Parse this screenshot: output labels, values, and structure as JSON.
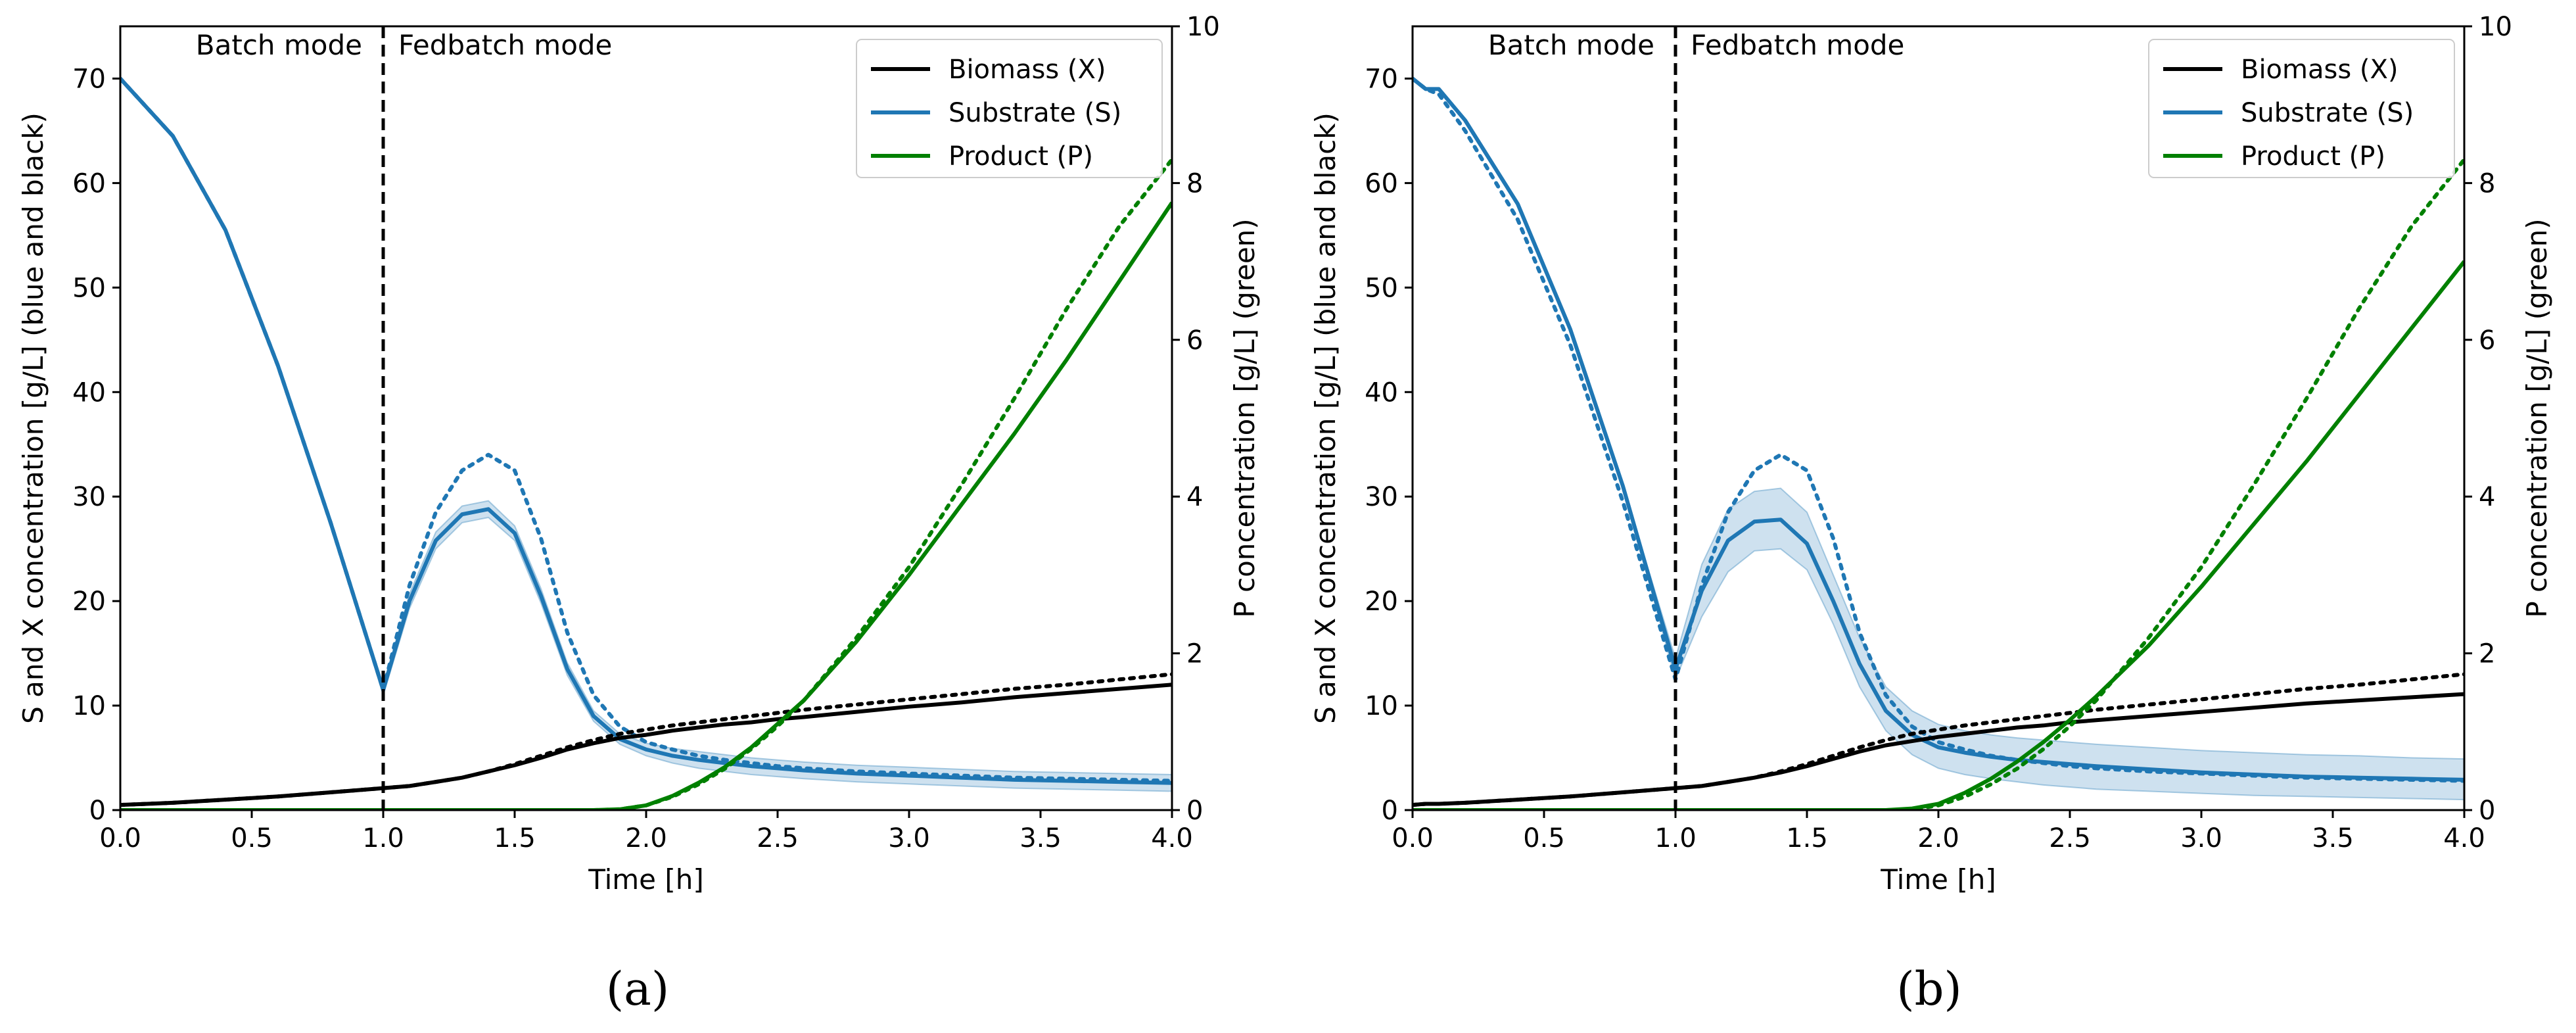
{
  "figure": {
    "subcaptions": [
      "(a)",
      "(b)"
    ]
  },
  "colors": {
    "biomass": "#000000",
    "substrate": "#1f77b4",
    "product": "#008000",
    "band": "#1f77b4"
  },
  "chart_data": [
    {
      "type": "line",
      "caption": "(a)",
      "xlabel": "Time [h]",
      "ylabel_left": "S and X concentration [g/L] (blue and black)",
      "ylabel_right": "P concentration [g/L] (green)",
      "xlim": [
        0,
        4
      ],
      "ylim_left": [
        0,
        75
      ],
      "ylim_right": [
        0,
        10
      ],
      "xticks": [
        "0.0",
        "0.5",
        "1.0",
        "1.5",
        "2.0",
        "2.5",
        "3.0",
        "3.5",
        "4.0"
      ],
      "yticks_left": [
        "0",
        "10",
        "20",
        "30",
        "40",
        "50",
        "60",
        "70"
      ],
      "yticks_right": [
        "0",
        "2",
        "4",
        "6",
        "8",
        "10"
      ],
      "annotations": {
        "switch_time": 1.0,
        "left": "Batch mode",
        "right": "Fedbatch mode"
      },
      "legend": {
        "position": "top-right",
        "entries": [
          "Biomass (X)",
          "Substrate (S)",
          "Product (P)"
        ]
      },
      "x": [
        0.0,
        0.2,
        0.4,
        0.6,
        0.8,
        1.0,
        1.1,
        1.2,
        1.3,
        1.4,
        1.5,
        1.6,
        1.7,
        1.8,
        1.9,
        2.0,
        2.1,
        2.2,
        2.3,
        2.4,
        2.5,
        2.6,
        2.8,
        3.0,
        3.2,
        3.4,
        3.6,
        3.8,
        4.0
      ],
      "series": [
        {
          "name": "Substrate (S) mean",
          "axis": "left",
          "style": "solid",
          "values": [
            70,
            64.5,
            55.5,
            42.5,
            27.5,
            11.5,
            20,
            25.8,
            28.3,
            28.8,
            26.5,
            20.5,
            13.5,
            9,
            6.8,
            5.8,
            5.2,
            4.8,
            4.5,
            4.2,
            4.0,
            3.8,
            3.5,
            3.3,
            3.1,
            2.9,
            2.8,
            2.7,
            2.6
          ],
          "band_lower": [
            70,
            64.5,
            55.5,
            42.5,
            27.5,
            11,
            19.3,
            25,
            27.5,
            28,
            25.8,
            19.8,
            12.9,
            8.5,
            6.3,
            5.2,
            4.5,
            4.0,
            3.7,
            3.4,
            3.2,
            3.0,
            2.7,
            2.5,
            2.3,
            2.1,
            2.0,
            1.9,
            1.8
          ],
          "band_upper": [
            70,
            64.5,
            55.5,
            42.5,
            27.5,
            12,
            20.7,
            26.6,
            29.1,
            29.6,
            27.2,
            21.2,
            14.1,
            9.5,
            7.3,
            6.4,
            5.9,
            5.6,
            5.3,
            5.0,
            4.8,
            4.6,
            4.3,
            4.1,
            3.9,
            3.7,
            3.6,
            3.5,
            3.4
          ]
        },
        {
          "name": "Substrate (S) reference",
          "axis": "left",
          "style": "dotted",
          "values": [
            70,
            64.5,
            55.5,
            42.5,
            27.5,
            11.5,
            21.5,
            28.5,
            32.5,
            34,
            32.5,
            26,
            17,
            11,
            8,
            6.5,
            5.8,
            5.2,
            4.8,
            4.5,
            4.2,
            4.0,
            3.7,
            3.5,
            3.3,
            3.1,
            3.0,
            2.9,
            2.8
          ]
        },
        {
          "name": "Biomass (X) mean",
          "axis": "left",
          "style": "solid",
          "values": [
            0.5,
            0.7,
            1.0,
            1.3,
            1.7,
            2.1,
            2.3,
            2.7,
            3.1,
            3.7,
            4.3,
            5.0,
            5.8,
            6.4,
            6.9,
            7.2,
            7.6,
            7.9,
            8.2,
            8.4,
            8.7,
            8.9,
            9.4,
            9.9,
            10.3,
            10.8,
            11.2,
            11.6,
            12.0
          ]
        },
        {
          "name": "Biomass (X) reference",
          "axis": "left",
          "style": "dotted",
          "values": [
            0.5,
            0.7,
            1.0,
            1.3,
            1.7,
            2.1,
            2.3,
            2.7,
            3.1,
            3.7,
            4.4,
            5.2,
            6.0,
            6.7,
            7.3,
            7.7,
            8.1,
            8.4,
            8.7,
            9.0,
            9.3,
            9.6,
            10.1,
            10.6,
            11.1,
            11.6,
            12.0,
            12.5,
            13.0
          ]
        },
        {
          "name": "Product (P) mean",
          "axis": "right",
          "style": "solid",
          "values": [
            0,
            0,
            0,
            0,
            0,
            0,
            0,
            0,
            0,
            0,
            0,
            0,
            0,
            0,
            0.01,
            0.06,
            0.18,
            0.35,
            0.55,
            0.8,
            1.1,
            1.4,
            2.15,
            3.0,
            3.9,
            4.8,
            5.75,
            6.75,
            7.75
          ]
        },
        {
          "name": "Product (P) reference",
          "axis": "right",
          "style": "dotted",
          "values": [
            0,
            0,
            0,
            0,
            0,
            0,
            0,
            0,
            0,
            0,
            0,
            0,
            0,
            0,
            0.01,
            0.06,
            0.17,
            0.33,
            0.53,
            0.78,
            1.07,
            1.4,
            2.2,
            3.1,
            4.15,
            5.25,
            6.4,
            7.45,
            8.3
          ]
        }
      ]
    },
    {
      "type": "line",
      "caption": "(b)",
      "xlabel": "Time [h]",
      "ylabel_left": "S and X concentration [g/L] (blue and black)",
      "ylabel_right": "P concentration [g/L] (green)",
      "xlim": [
        0,
        4
      ],
      "ylim_left": [
        0,
        75
      ],
      "ylim_right": [
        0,
        10
      ],
      "xticks": [
        "0.0",
        "0.5",
        "1.0",
        "1.5",
        "2.0",
        "2.5",
        "3.0",
        "3.5",
        "4.0"
      ],
      "yticks_left": [
        "0",
        "10",
        "20",
        "30",
        "40",
        "50",
        "60",
        "70"
      ],
      "yticks_right": [
        "0",
        "2",
        "4",
        "6",
        "8",
        "10"
      ],
      "annotations": {
        "switch_time": 1.0,
        "left": "Batch mode",
        "right": "Fedbatch mode"
      },
      "legend": {
        "position": "top-right",
        "entries": [
          "Biomass (X)",
          "Substrate (S)",
          "Product (P)"
        ]
      },
      "x": [
        0.0,
        0.05,
        0.1,
        0.2,
        0.4,
        0.6,
        0.8,
        1.0,
        1.1,
        1.2,
        1.3,
        1.4,
        1.5,
        1.6,
        1.7,
        1.8,
        1.9,
        2.0,
        2.1,
        2.2,
        2.3,
        2.4,
        2.5,
        2.6,
        2.8,
        3.0,
        3.2,
        3.4,
        3.6,
        3.8,
        4.0
      ],
      "series": [
        {
          "name": "Substrate (S) mean",
          "axis": "left",
          "style": "solid",
          "values": [
            70,
            69,
            69,
            66,
            58,
            46,
            31,
            13.5,
            21,
            25.8,
            27.6,
            27.8,
            25.5,
            20,
            14,
            9.5,
            7.2,
            6.0,
            5.5,
            5.1,
            4.8,
            4.6,
            4.4,
            4.2,
            3.9,
            3.6,
            3.4,
            3.2,
            3.1,
            3.0,
            2.9
          ],
          "band_lower": [
            70,
            69,
            69,
            66,
            58,
            46,
            31,
            12.5,
            18.5,
            22.8,
            24.8,
            25,
            23,
            17.8,
            11.8,
            7.6,
            5.3,
            4.0,
            3.4,
            3.0,
            2.7,
            2.4,
            2.2,
            2.0,
            1.8,
            1.6,
            1.4,
            1.3,
            1.2,
            1.1,
            1.0
          ],
          "band_upper": [
            70,
            69,
            69,
            66,
            58,
            46,
            31,
            14.5,
            23.5,
            28.8,
            30.5,
            30.8,
            28.5,
            22.5,
            16.5,
            11.8,
            9.5,
            8.2,
            7.6,
            7.2,
            6.9,
            6.7,
            6.5,
            6.3,
            6.0,
            5.7,
            5.5,
            5.3,
            5.2,
            5.0,
            4.9
          ]
        },
        {
          "name": "Substrate (S) reference",
          "axis": "left",
          "style": "dotted",
          "values": [
            70,
            69,
            68.5,
            65,
            56.5,
            44.5,
            29.5,
            12.5,
            21.5,
            28.5,
            32.5,
            34,
            32.5,
            26,
            17,
            11,
            8,
            6.5,
            5.8,
            5.2,
            4.8,
            4.5,
            4.2,
            4.0,
            3.7,
            3.5,
            3.3,
            3.1,
            3.0,
            2.9,
            2.8
          ]
        },
        {
          "name": "Biomass (X) mean",
          "axis": "left",
          "style": "solid",
          "values": [
            0.5,
            0.6,
            0.6,
            0.7,
            1.0,
            1.3,
            1.7,
            2.1,
            2.3,
            2.7,
            3.1,
            3.6,
            4.2,
            4.9,
            5.6,
            6.2,
            6.6,
            7.0,
            7.3,
            7.6,
            7.9,
            8.1,
            8.4,
            8.6,
            9.0,
            9.4,
            9.8,
            10.2,
            10.5,
            10.8,
            11.1
          ]
        },
        {
          "name": "Biomass (X) reference",
          "axis": "left",
          "style": "dotted",
          "values": [
            0.5,
            0.6,
            0.6,
            0.7,
            1.0,
            1.3,
            1.7,
            2.1,
            2.3,
            2.7,
            3.1,
            3.7,
            4.4,
            5.2,
            6.0,
            6.7,
            7.3,
            7.7,
            8.1,
            8.4,
            8.7,
            9.0,
            9.3,
            9.6,
            10.1,
            10.6,
            11.1,
            11.6,
            12.0,
            12.5,
            13.0
          ]
        },
        {
          "name": "Product (P) mean",
          "axis": "right",
          "style": "solid",
          "values": [
            0,
            0,
            0,
            0,
            0,
            0,
            0,
            0,
            0,
            0,
            0,
            0,
            0,
            0,
            0,
            0,
            0.02,
            0.08,
            0.22,
            0.4,
            0.62,
            0.87,
            1.15,
            1.45,
            2.1,
            2.85,
            3.65,
            4.45,
            5.3,
            6.15,
            7.0
          ]
        },
        {
          "name": "Product (P) reference",
          "axis": "right",
          "style": "dotted",
          "values": [
            0,
            0,
            0,
            0,
            0,
            0,
            0,
            0,
            0,
            0,
            0,
            0,
            0,
            0,
            0,
            0,
            0.01,
            0.06,
            0.17,
            0.33,
            0.53,
            0.78,
            1.07,
            1.4,
            2.2,
            3.1,
            4.15,
            5.25,
            6.4,
            7.45,
            8.3
          ]
        }
      ]
    }
  ]
}
